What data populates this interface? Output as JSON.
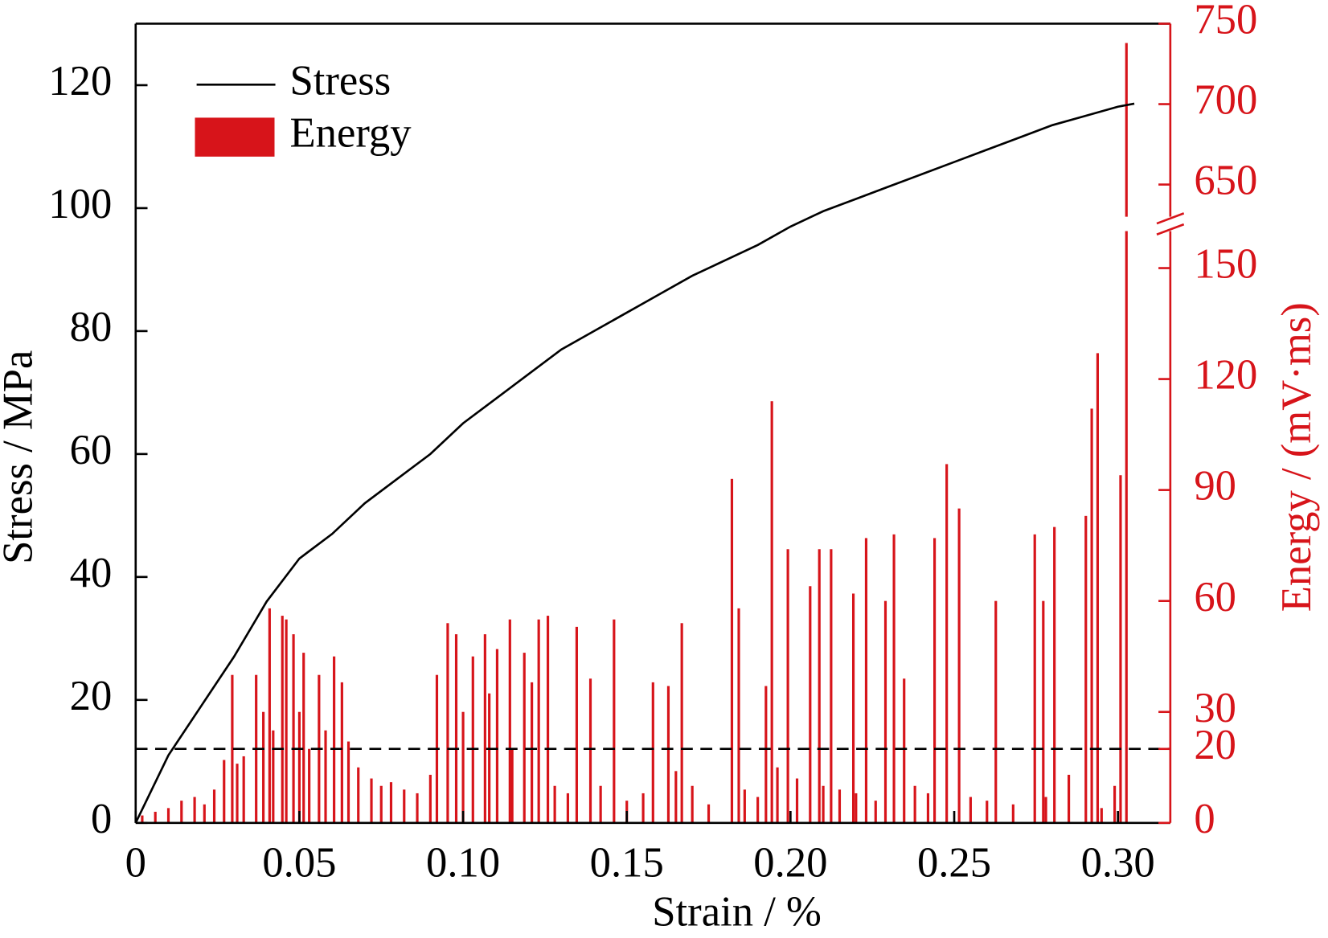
{
  "chart_data": {
    "type": "combo",
    "xlabel": "Strain / %",
    "ylabel": "Stress / MPa",
    "y2label": "Energy / (mV·ms)",
    "legend": "upper left",
    "xlim": [
      0,
      0.316
    ],
    "xticks": [
      0,
      0.05,
      {
        "value": 0.1,
        "label": "0.10"
      },
      0.15,
      {
        "value": 0.2,
        "label": "0.20"
      },
      0.25,
      {
        "value": 0.3,
        "label": "0.30"
      }
    ],
    "ylim": [
      0,
      130
    ],
    "yticks": [
      0,
      20,
      40,
      60,
      80,
      100,
      120
    ],
    "y2lim": [
      0,
      750
    ],
    "y2break": [
      160,
      630
    ],
    "y2ticks": [
      0,
      20,
      30,
      60,
      90,
      120,
      150,
      650,
      700,
      750
    ],
    "y2color": "#d7141a",
    "reference_line": {
      "value": 20,
      "axis": "y2",
      "style": "dashed",
      "color": "#000000"
    },
    "series": [
      {
        "name": "Stress",
        "type": "line",
        "color": "#000000",
        "x": [
          0,
          0.01,
          0.02,
          0.03,
          0.04,
          0.05,
          0.06,
          0.07,
          0.08,
          0.09,
          0.1,
          0.11,
          0.12,
          0.13,
          0.14,
          0.15,
          0.16,
          0.17,
          0.18,
          0.19,
          0.2,
          0.21,
          0.22,
          0.23,
          0.24,
          0.25,
          0.26,
          0.27,
          0.28,
          0.29,
          0.3,
          0.305
        ],
        "values": [
          0,
          11,
          19,
          27,
          36,
          43,
          47,
          52,
          56,
          60,
          65,
          69,
          73,
          77,
          80,
          83,
          86,
          89,
          91.5,
          94,
          97,
          99.5,
          101.5,
          103.5,
          105.5,
          107.5,
          109.5,
          111.5,
          113.5,
          115,
          116.5,
          117
        ]
      },
      {
        "name": "Energy",
        "type": "bar",
        "color": "#d7141a",
        "axis": "y2",
        "x": [
          0.0295,
          0.0368,
          0.0409,
          0.0448,
          0.0482,
          0.0513,
          0.0606,
          0.063,
          0.0953,
          0.0979,
          0.1067,
          0.1104,
          0.1143,
          0.1187,
          0.1231,
          0.1259,
          0.1347,
          0.1389,
          0.1461,
          0.158,
          0.1627,
          0.1668,
          0.1821,
          0.1842,
          0.1925,
          0.1943,
          0.1992,
          0.206,
          0.2088,
          0.2124,
          0.2192,
          0.2231,
          0.229,
          0.2316,
          0.2347,
          0.244,
          0.2477,
          0.2515,
          0.2627,
          0.2746,
          0.2772,
          0.2806,
          0.2902,
          0.292,
          0.2938,
          0.3008,
          0.3026,
          0.002,
          0.006,
          0.01,
          0.014,
          0.018,
          0.021,
          0.024,
          0.027,
          0.031,
          0.033,
          0.039,
          0.042,
          0.046,
          0.05,
          0.053,
          0.056,
          0.058,
          0.065,
          0.068,
          0.072,
          0.075,
          0.078,
          0.082,
          0.086,
          0.09,
          0.092,
          0.1,
          0.103,
          0.108,
          0.115,
          0.121,
          0.128,
          0.132,
          0.142,
          0.15,
          0.155,
          0.165,
          0.17,
          0.175,
          0.186,
          0.19,
          0.196,
          0.202,
          0.21,
          0.215,
          0.22,
          0.226,
          0.238,
          0.242,
          0.255,
          0.26,
          0.268,
          0.278,
          0.285,
          0.295,
          0.299
        ],
        "values": [
          40,
          40,
          58,
          56,
          51,
          46,
          45,
          38,
          54,
          51,
          51,
          47,
          55,
          46,
          55,
          56,
          53,
          39,
          55,
          38,
          37,
          54,
          93,
          58,
          37,
          114,
          74,
          64,
          74,
          74,
          62,
          77,
          60,
          78,
          39,
          77,
          97,
          85,
          60,
          78,
          60,
          80,
          83,
          112,
          127,
          94,
          738,
          2,
          3,
          4,
          6,
          7,
          5,
          9,
          17,
          16,
          18,
          30,
          25,
          55,
          30,
          20,
          40,
          25,
          22,
          15,
          12,
          10,
          11,
          9,
          8,
          13,
          40,
          30,
          45,
          35,
          20,
          38,
          10,
          8,
          10,
          6,
          8,
          14,
          10,
          5,
          9,
          7,
          15,
          12,
          10,
          9,
          8,
          6,
          10,
          8,
          7,
          6,
          5,
          7,
          13,
          4,
          10
        ]
      }
    ]
  }
}
